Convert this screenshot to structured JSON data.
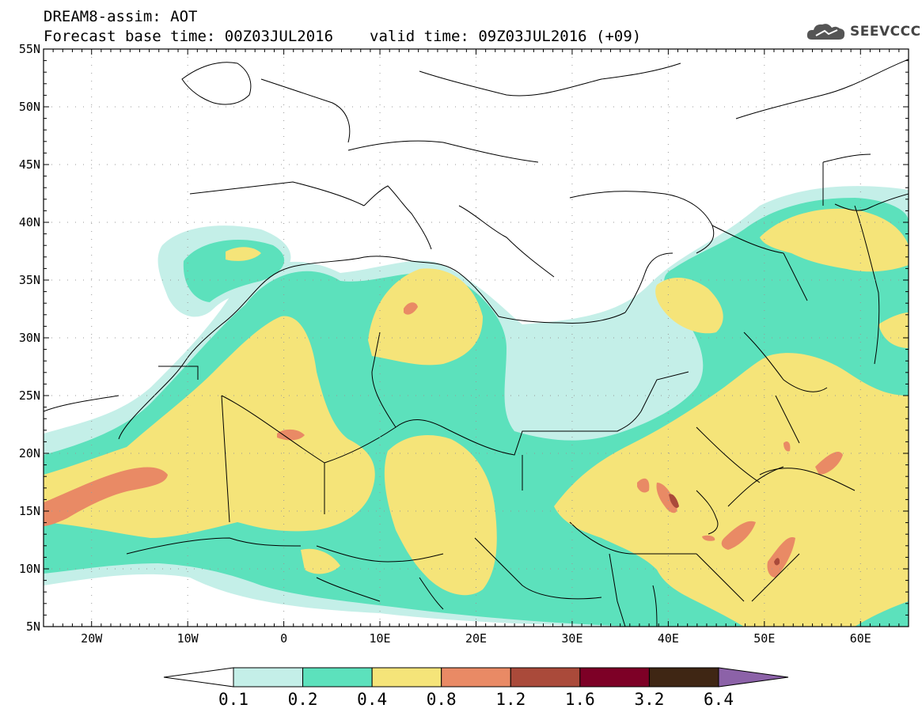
{
  "title": {
    "line1": "DREAM8-assim: AOT",
    "base_time": "Forecast base time: 00Z03JUL2016",
    "valid_time": "valid time: 09Z03JUL2016 (+09)"
  },
  "logo": {
    "text": "SEEVCCC",
    "icon": "cloud-icon"
  },
  "map": {
    "lon_range": [
      -25,
      65
    ],
    "lat_range": [
      5,
      55
    ],
    "lat_ticks": [
      "55N",
      "50N",
      "45N",
      "40N",
      "35N",
      "30N",
      "25N",
      "20N",
      "15N",
      "10N",
      "5N"
    ],
    "lon_ticks": [
      "20W",
      "10W",
      "0",
      "10E",
      "20E",
      "30E",
      "40E",
      "50E",
      "60E"
    ],
    "grid": "dotted"
  },
  "colorbar": {
    "labels": [
      "0.1",
      "0.2",
      "0.4",
      "0.8",
      "1.2",
      "1.6",
      "3.2",
      "6.4"
    ],
    "colors": [
      "#ffffff",
      "#c4efe8",
      "#5ce1bc",
      "#f5e479",
      "#e98a65",
      "#aa4a3a",
      "#7d0026",
      "#3f2614",
      "#8c62a8"
    ]
  }
}
